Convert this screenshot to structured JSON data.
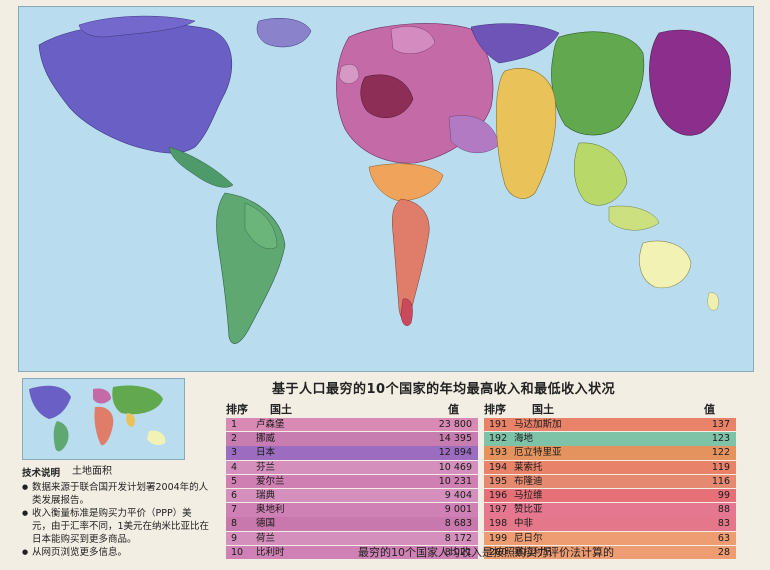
{
  "title": "基于人口最穷的10个国家的年均最高收入和最低收入状况",
  "inset_label": "土地面积",
  "notes": {
    "heading": "技术说明",
    "items": [
      "数据来源于联合国开发计划署2004年的人类发展报告。",
      "收入衡量标准是购买力平价（PPP）美元，由于汇率不同，1美元在纳米比亚比在日本能购买到更多商品。",
      "从网页浏览更多信息。"
    ]
  },
  "table": {
    "headers": {
      "rank": "排序",
      "country": "国土",
      "value": "值"
    },
    "top": [
      {
        "rank": "1",
        "country": "卢森堡",
        "value": "23 800",
        "color": "#d98ab4"
      },
      {
        "rank": "2",
        "country": "挪威",
        "value": "14 395",
        "color": "#c77daf"
      },
      {
        "rank": "3",
        "country": "日本",
        "value": "12 894",
        "color": "#9b6cc0"
      },
      {
        "rank": "4",
        "country": "芬兰",
        "value": "10 469",
        "color": "#d58fbd"
      },
      {
        "rank": "5",
        "country": "爱尔兰",
        "value": "10 231",
        "color": "#cf7fb1"
      },
      {
        "rank": "6",
        "country": "瑞典",
        "value": "9 404",
        "color": "#d58fbd"
      },
      {
        "rank": "7",
        "country": "奥地利",
        "value": "9 001",
        "color": "#cf80b4"
      },
      {
        "rank": "8",
        "country": "德国",
        "value": "8 683",
        "color": "#c878ac"
      },
      {
        "rank": "9",
        "country": "荷兰",
        "value": "8 172",
        "color": "#d58fbd"
      },
      {
        "rank": "10",
        "country": "比利时",
        "value": "8 021",
        "color": "#cf80b4"
      }
    ],
    "bottom": [
      {
        "rank": "191",
        "country": "马达加斯加",
        "value": "137",
        "color": "#e8836a"
      },
      {
        "rank": "192",
        "country": "海地",
        "value": "123",
        "color": "#7ec2a8"
      },
      {
        "rank": "193",
        "country": "厄立特里亚",
        "value": "122",
        "color": "#e4935e"
      },
      {
        "rank": "194",
        "country": "莱索托",
        "value": "119",
        "color": "#e8836a"
      },
      {
        "rank": "195",
        "country": "布隆迪",
        "value": "116",
        "color": "#e58a70"
      },
      {
        "rank": "196",
        "country": "马拉维",
        "value": "99",
        "color": "#e57078"
      },
      {
        "rank": "197",
        "country": "赞比亚",
        "value": "88",
        "color": "#e57890"
      },
      {
        "rank": "198",
        "country": "中非",
        "value": "83",
        "color": "#e4788a"
      },
      {
        "rank": "199",
        "country": "尼日尔",
        "value": "63",
        "color": "#ee9c72"
      },
      {
        "rank": "200",
        "country": "塞拉利昂",
        "value": "28",
        "color": "#ee9c72"
      }
    ]
  },
  "footer": "最穷的10个国家人均收入是按照购买力评价法计算的"
}
